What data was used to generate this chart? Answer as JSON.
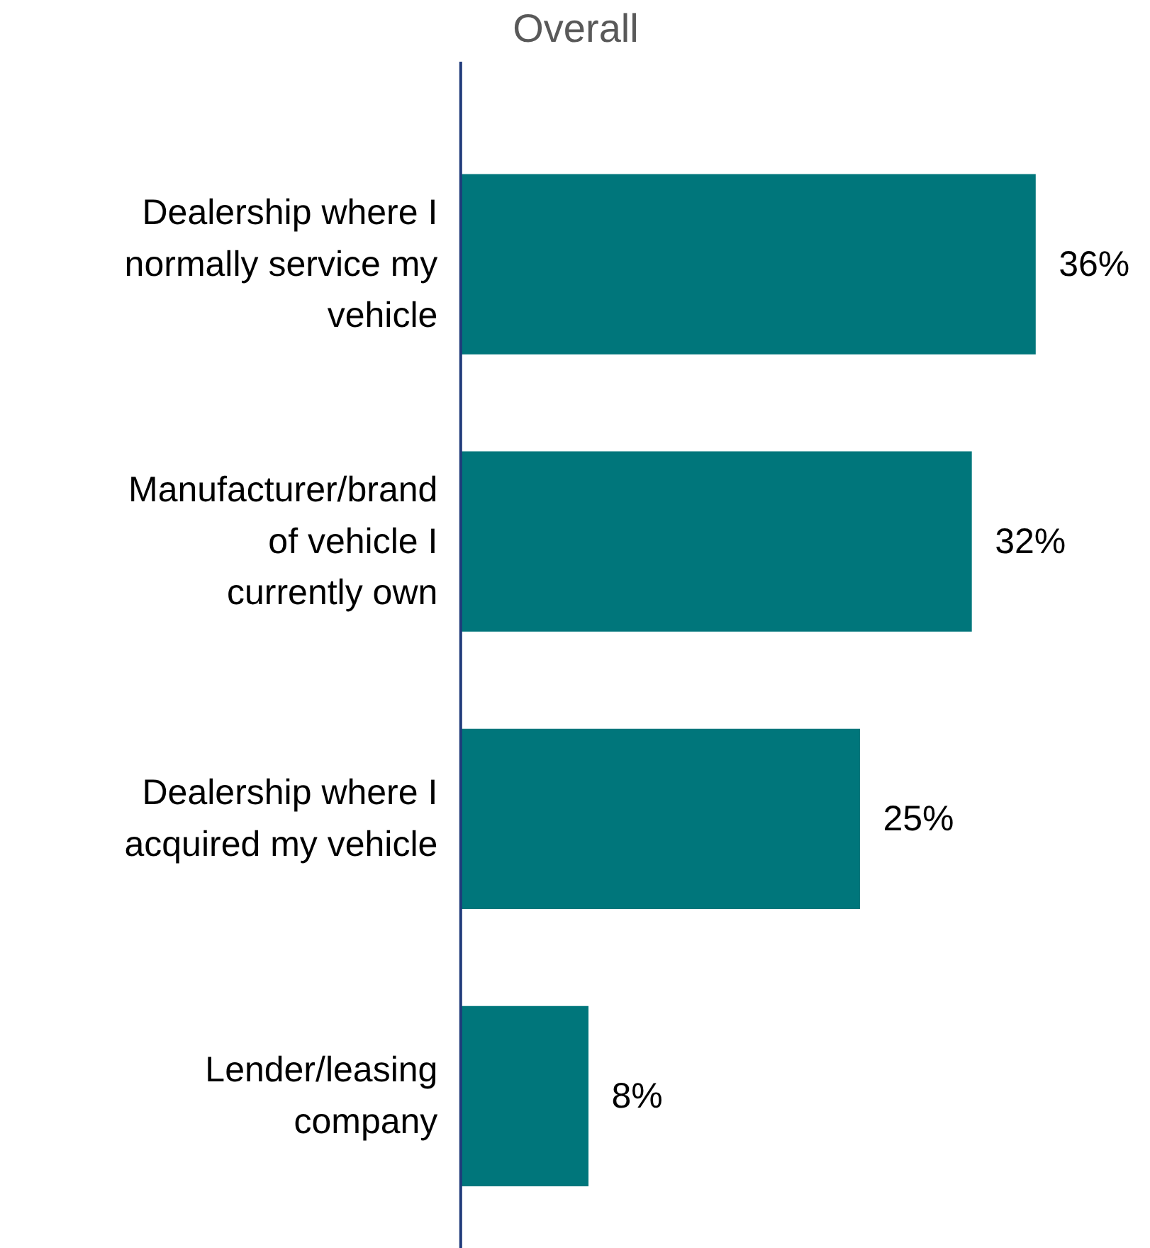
{
  "chart_data": {
    "type": "bar",
    "orientation": "horizontal",
    "title": "Overall",
    "categories": [
      "Dealership where I normally service my vehicle",
      "Manufacturer/brand of vehicle I currently own",
      "Dealership where I acquired my vehicle",
      "Lender/leasing company"
    ],
    "values": [
      36,
      32,
      25,
      8
    ],
    "value_labels": [
      "36%",
      "32%",
      "25%",
      "8%"
    ],
    "color": "#00767b",
    "grid": false
  }
}
